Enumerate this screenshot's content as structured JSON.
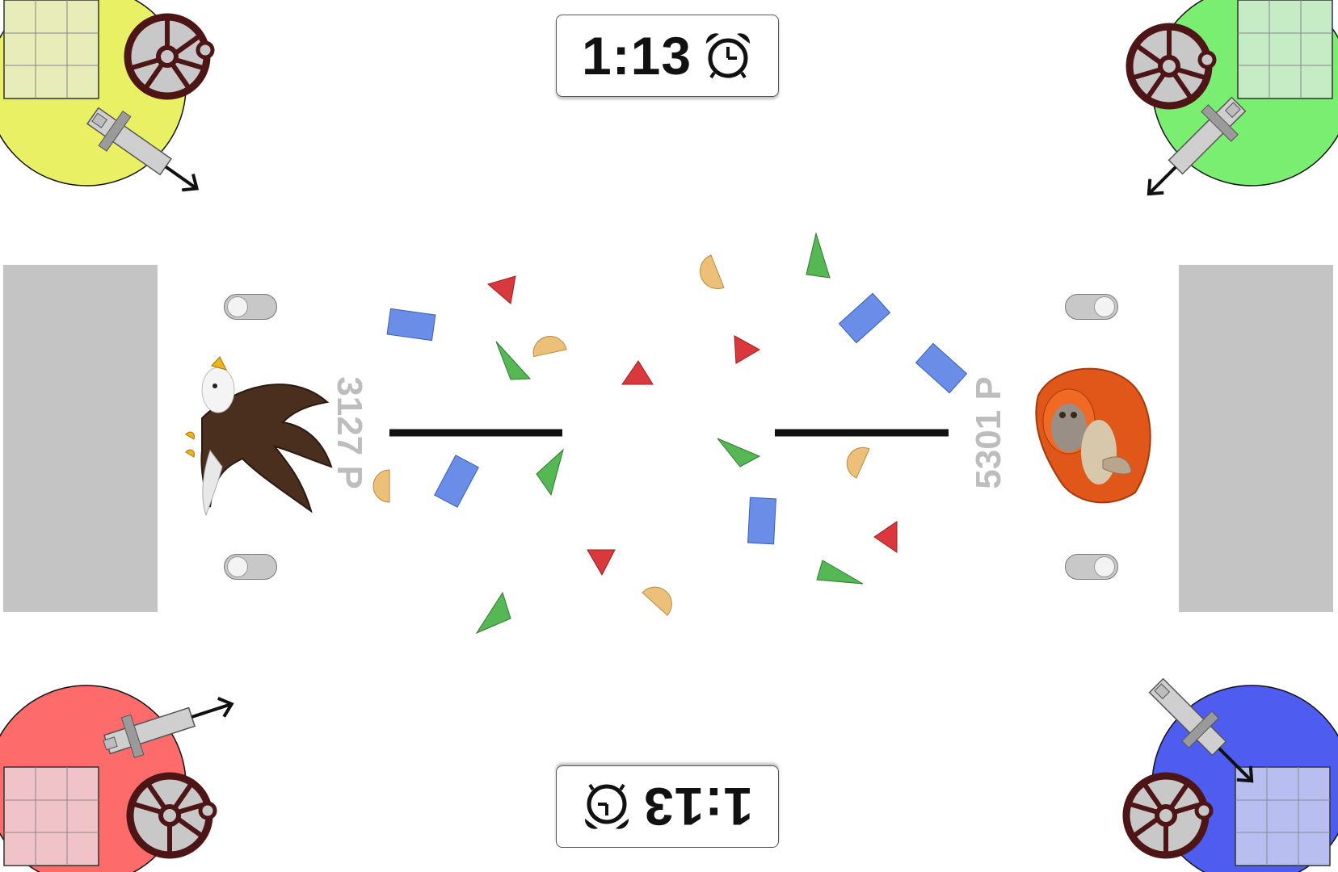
{
  "timer": {
    "time": "1:13",
    "icon": "alarm-clock-icon"
  },
  "players": {
    "left": {
      "score": "3127 P",
      "avatar": "eagle-icon",
      "corner_color": "#e9f063",
      "grid_color": "#e8ecb9"
    },
    "right": {
      "score": "5301 P",
      "avatar": "orangutan-icon",
      "corner_color": "#7aee70",
      "grid_color": "#c5ecc5"
    },
    "bottom_left": {
      "corner_color": "#fd6b6b",
      "grid_color": "#f0c3c8"
    },
    "bottom_right": {
      "corner_color": "#4f5cf0",
      "grid_color": "#b8bff0"
    }
  },
  "colors": {
    "blue": "#6a8ee8",
    "red": "#d9383c",
    "green": "#55b854",
    "orange": "#edc07a",
    "goal": "#c4c4c4",
    "wheel": "#4d1515"
  },
  "toggles": {
    "left_top": "off",
    "left_bottom": "off",
    "right_top": "on",
    "right_bottom": "on"
  }
}
